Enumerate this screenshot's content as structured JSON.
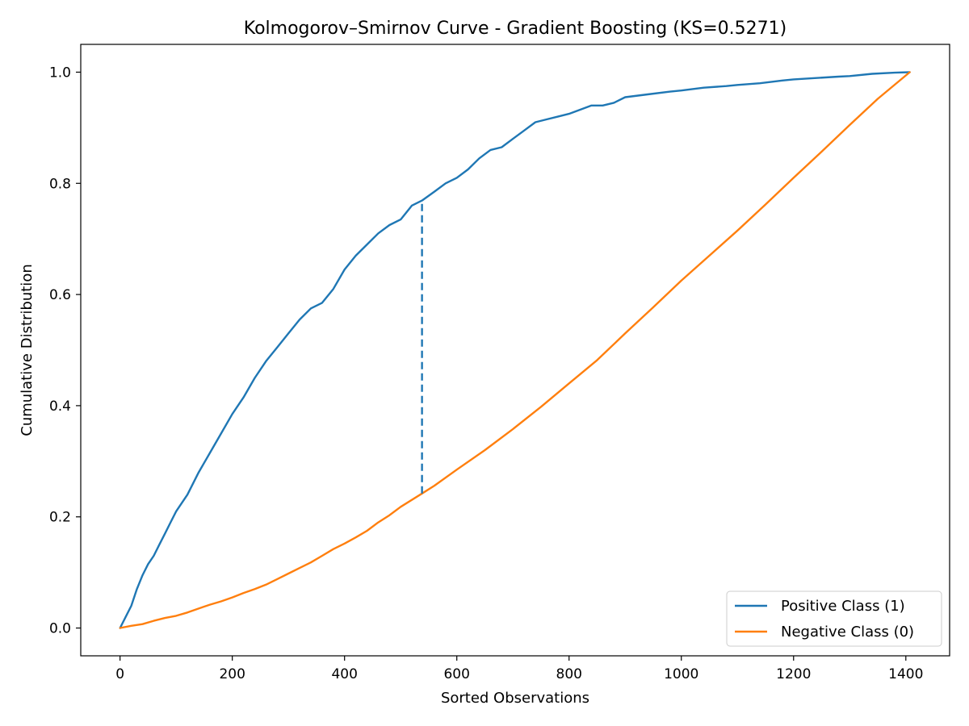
{
  "chart_data": {
    "type": "line",
    "title": "Kolmogorov–Smirnov Curve - Gradient Boosting (KS=0.5271)",
    "xlabel": "Sorted Observations",
    "ylabel": "Cumulative Distribution",
    "xlim": [
      -70,
      1478
    ],
    "ylim": [
      -0.05,
      1.05
    ],
    "xticks": [
      0,
      200,
      400,
      600,
      800,
      1000,
      1200,
      1400
    ],
    "xtick_labels": [
      "0",
      "200",
      "400",
      "600",
      "800",
      "1000",
      "1200",
      "1400"
    ],
    "yticks": [
      0.0,
      0.2,
      0.4,
      0.6,
      0.8,
      1.0
    ],
    "ytick_labels": [
      "0.0",
      "0.2",
      "0.4",
      "0.6",
      "0.8",
      "1.0"
    ],
    "grid": false,
    "legend_position": "lower right",
    "series": [
      {
        "name": "Positive Class (1)",
        "color": "#1f77b4",
        "x": [
          0,
          10,
          20,
          30,
          40,
          50,
          60,
          70,
          80,
          90,
          100,
          120,
          140,
          160,
          180,
          200,
          220,
          240,
          260,
          280,
          300,
          320,
          340,
          360,
          380,
          400,
          420,
          440,
          460,
          480,
          500,
          520,
          538,
          560,
          580,
          600,
          620,
          640,
          660,
          680,
          700,
          720,
          740,
          760,
          780,
          800,
          840,
          860,
          880,
          900,
          940,
          980,
          1000,
          1040,
          1080,
          1100,
          1140,
          1180,
          1200,
          1280,
          1300,
          1340,
          1380,
          1407
        ],
        "y": [
          0.0,
          0.02,
          0.04,
          0.07,
          0.095,
          0.115,
          0.13,
          0.15,
          0.17,
          0.19,
          0.21,
          0.24,
          0.28,
          0.315,
          0.35,
          0.385,
          0.415,
          0.45,
          0.48,
          0.505,
          0.53,
          0.555,
          0.575,
          0.585,
          0.61,
          0.645,
          0.67,
          0.69,
          0.71,
          0.725,
          0.735,
          0.76,
          0.7691,
          0.785,
          0.8,
          0.81,
          0.825,
          0.845,
          0.86,
          0.865,
          0.88,
          0.895,
          0.91,
          0.915,
          0.92,
          0.925,
          0.94,
          0.94,
          0.945,
          0.955,
          0.96,
          0.965,
          0.967,
          0.972,
          0.975,
          0.977,
          0.98,
          0.985,
          0.987,
          0.992,
          0.993,
          0.997,
          0.999,
          1.0
        ]
      },
      {
        "name": "Negative Class (0)",
        "color": "#ff7f0e",
        "x": [
          0,
          20,
          40,
          60,
          80,
          100,
          120,
          140,
          160,
          180,
          200,
          220,
          240,
          260,
          280,
          300,
          320,
          340,
          360,
          380,
          400,
          420,
          440,
          460,
          480,
          500,
          538,
          560,
          600,
          650,
          700,
          750,
          800,
          850,
          900,
          950,
          1000,
          1050,
          1100,
          1150,
          1200,
          1250,
          1300,
          1350,
          1407
        ],
        "y": [
          0.0,
          0.004,
          0.007,
          0.013,
          0.018,
          0.022,
          0.028,
          0.035,
          0.042,
          0.048,
          0.055,
          0.063,
          0.07,
          0.078,
          0.088,
          0.098,
          0.108,
          0.118,
          0.13,
          0.142,
          0.152,
          0.163,
          0.175,
          0.19,
          0.203,
          0.218,
          0.242,
          0.256,
          0.285,
          0.32,
          0.358,
          0.398,
          0.44,
          0.482,
          0.53,
          0.577,
          0.625,
          0.67,
          0.715,
          0.762,
          0.81,
          0.857,
          0.905,
          0.952,
          1.0
        ]
      }
    ],
    "annotations": [
      {
        "type": "ks-line",
        "x": 538,
        "y0": 0.242,
        "y1": 0.7691,
        "color": "#1f77b4",
        "style": "dashed"
      }
    ]
  }
}
